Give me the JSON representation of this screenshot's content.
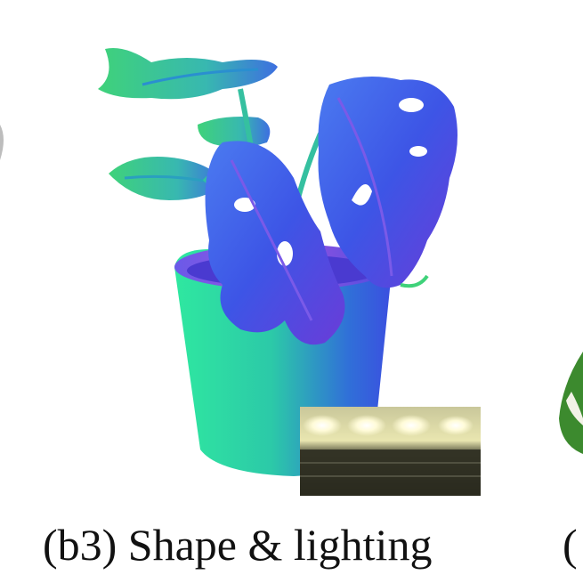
{
  "figure": {
    "caption": "(b3) Shape & lighting",
    "next_caption_fragment": "(",
    "normal_map_palette": {
      "pot_green": "#2fe8a0",
      "pot_blue": "#3b4fe0",
      "leaf_blue": "#3d55e6",
      "leaf_violet": "#6a3cd8",
      "leaf_green": "#3fd27a"
    },
    "environment_map": {
      "sky": "#e9e6b0",
      "ground": "#2a2a1e"
    }
  }
}
